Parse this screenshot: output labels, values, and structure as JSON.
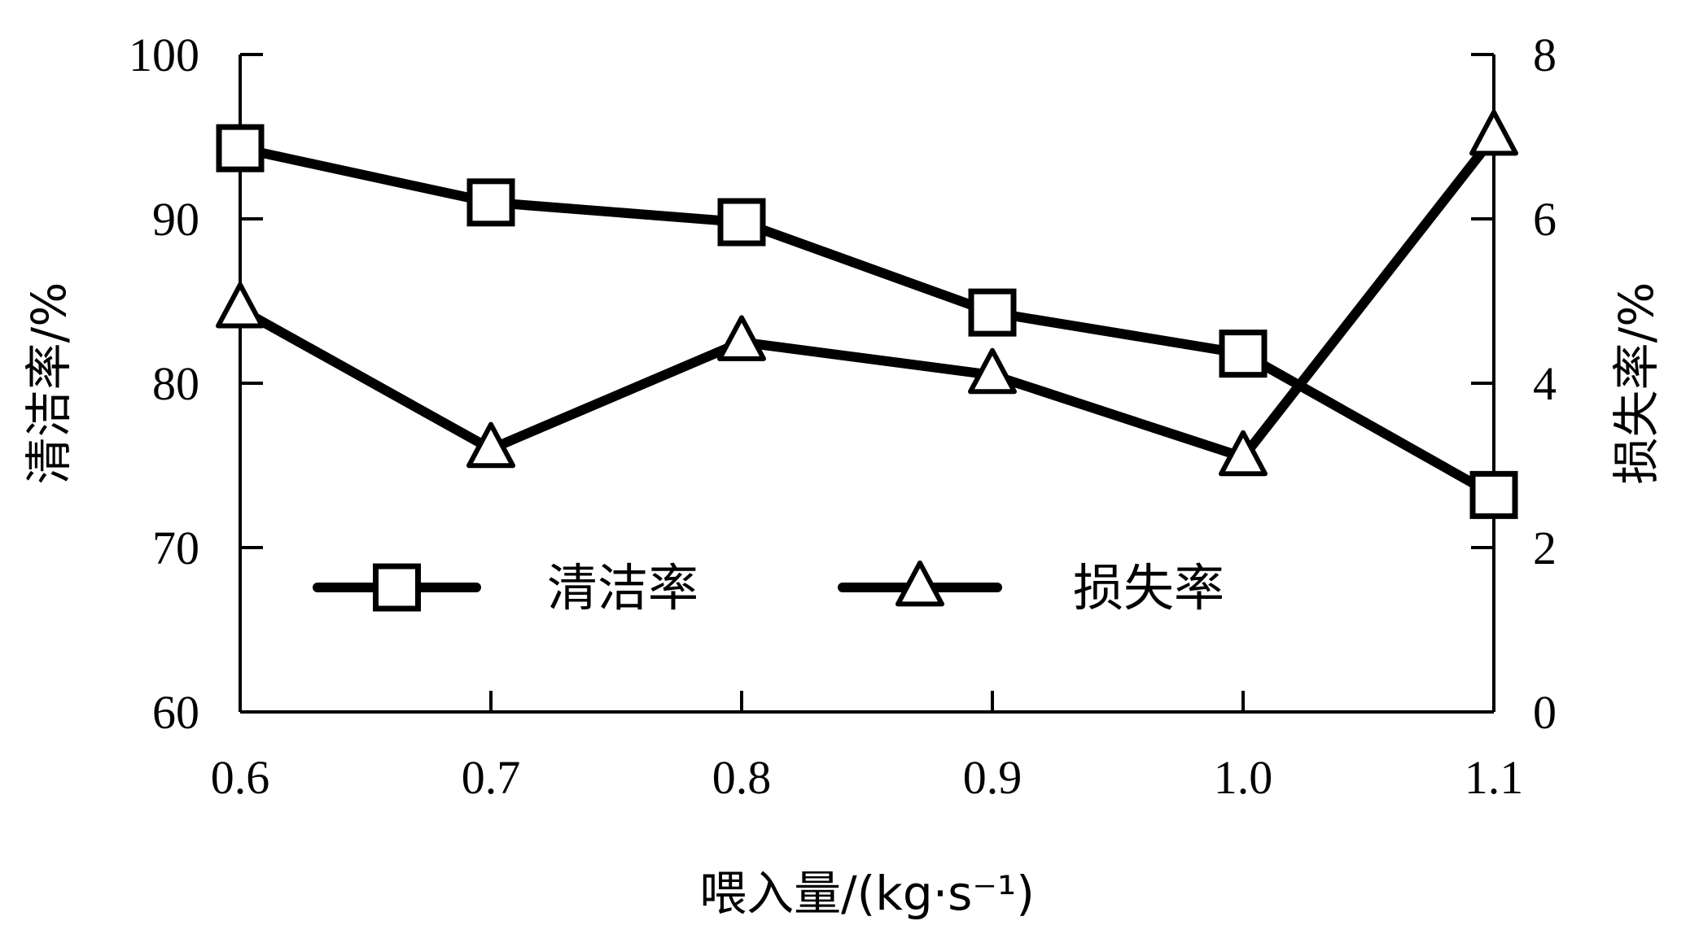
{
  "chart_data": {
    "type": "line",
    "title": "",
    "x": [
      0.6,
      0.7,
      0.8,
      0.9,
      1.0,
      1.1
    ],
    "x_tick_labels": [
      "0.6",
      "0.7",
      "0.8",
      "0.9",
      "1.0",
      "1.1"
    ],
    "xlabel": "喂入量/(kg·s⁻¹)",
    "xlim": [
      0.6,
      1.1
    ],
    "ylabel_left": "清洁率/%",
    "ylim_left": [
      60,
      100
    ],
    "yticks_left": [
      "60",
      "70",
      "80",
      "90",
      "100"
    ],
    "ylabel_right": "损失率/%",
    "ylim_right": [
      0,
      8
    ],
    "yticks_right": [
      "0",
      "2",
      "4",
      "6",
      "8"
    ],
    "grid": false,
    "legend_position": "inside-lower-center",
    "series": [
      {
        "name": "清洁率",
        "axis": "left",
        "marker": "square",
        "color": "#000000",
        "values": [
          94.3,
          91.0,
          89.8,
          84.3,
          81.8,
          73.2
        ]
      },
      {
        "name": "损失率",
        "axis": "right",
        "marker": "triangle",
        "color": "#000000",
        "values": [
          4.9,
          3.2,
          4.5,
          4.1,
          3.1,
          7.0
        ]
      }
    ]
  }
}
